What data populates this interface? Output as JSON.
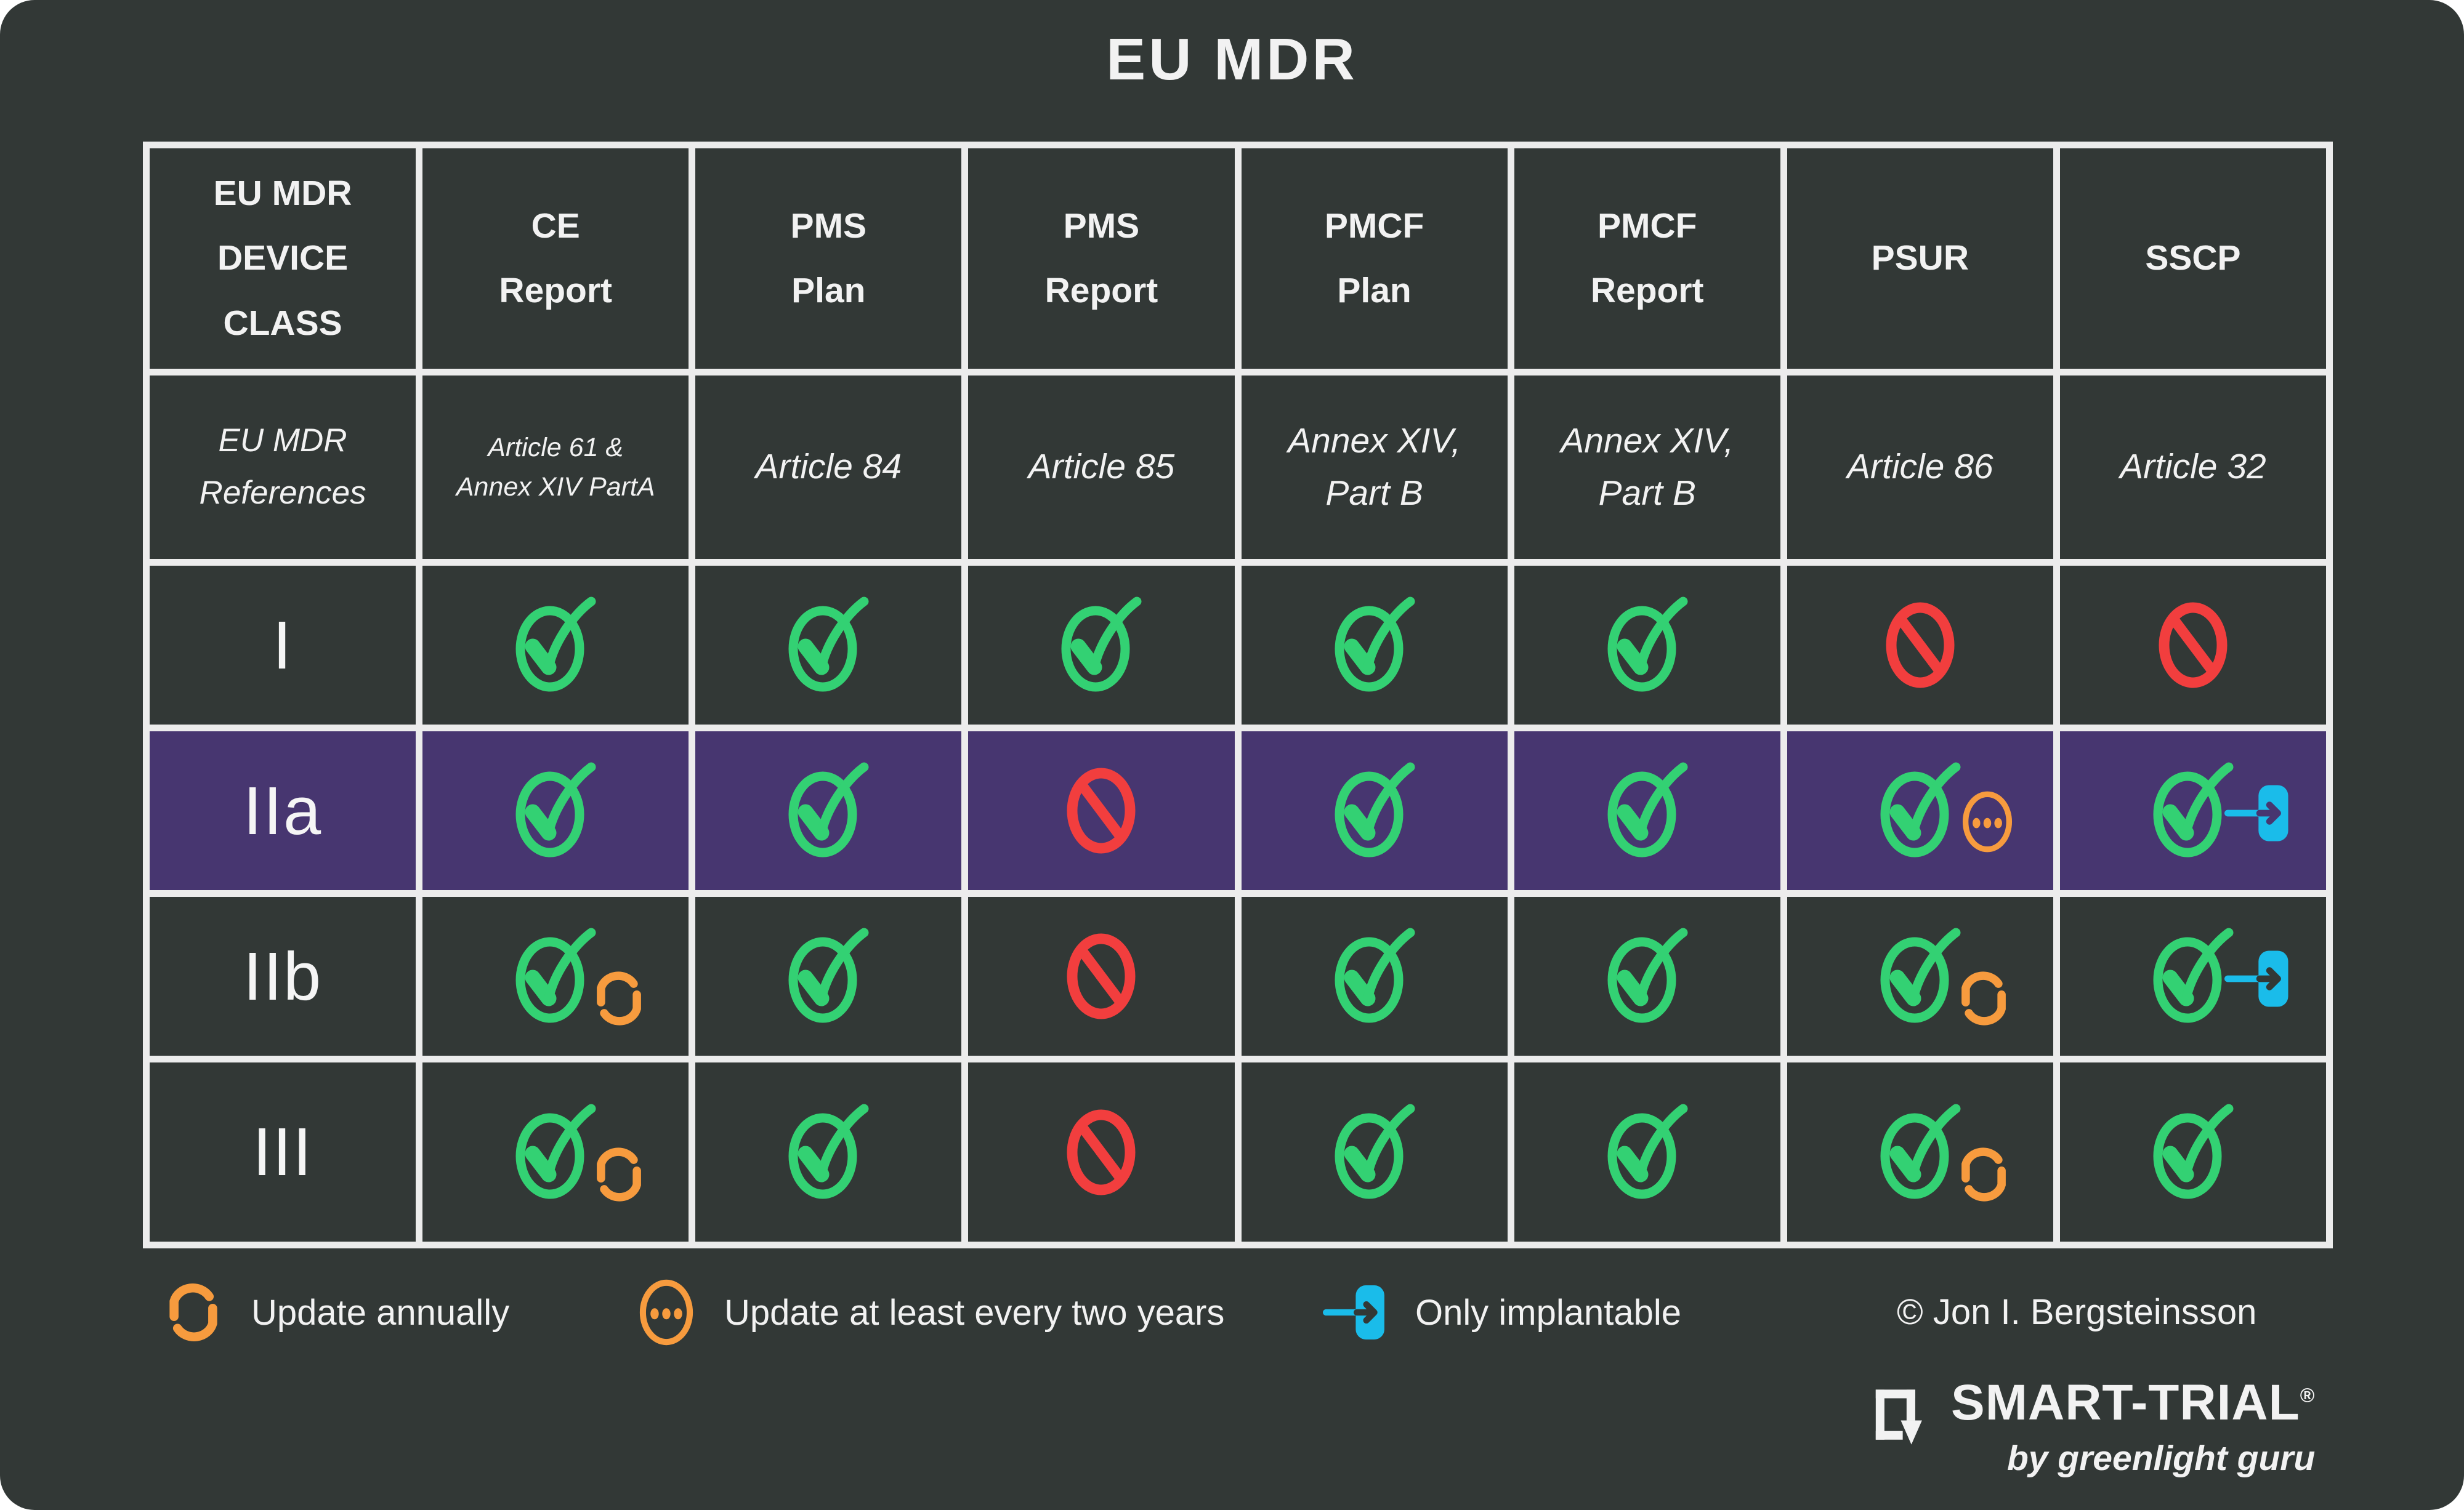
{
  "title": "EU MDR",
  "table": {
    "device_class_header": "EU MDR\nDEVICE\nCLASS",
    "columns": [
      "CE\nReport",
      "PMS\nPlan",
      "PMS\nReport",
      "PMCF\nPlan",
      "PMCF\nReport",
      "PSUR",
      "SSCP"
    ],
    "references_label": "EU MDR\nReferences",
    "references": [
      "Article 61 &\nAnnex XIV PartA",
      "Article 84",
      "Article 85",
      "Annex XIV,\nPart B",
      "Annex XIV,\nPart B",
      "Article 86",
      "Article 32"
    ],
    "rows": [
      {
        "device_class": "I",
        "highlighted": false,
        "cells": [
          {
            "status": "yes"
          },
          {
            "status": "yes"
          },
          {
            "status": "yes"
          },
          {
            "status": "yes"
          },
          {
            "status": "yes"
          },
          {
            "status": "no"
          },
          {
            "status": "no"
          }
        ]
      },
      {
        "device_class": "IIa",
        "highlighted": true,
        "cells": [
          {
            "status": "yes"
          },
          {
            "status": "yes"
          },
          {
            "status": "no"
          },
          {
            "status": "yes"
          },
          {
            "status": "yes"
          },
          {
            "status": "yes",
            "modifier": "every-two-years"
          },
          {
            "status": "yes",
            "modifier": "implantable"
          }
        ]
      },
      {
        "device_class": "IIb",
        "highlighted": false,
        "cells": [
          {
            "status": "yes",
            "modifier": "annual"
          },
          {
            "status": "yes"
          },
          {
            "status": "no"
          },
          {
            "status": "yes"
          },
          {
            "status": "yes"
          },
          {
            "status": "yes",
            "modifier": "annual"
          },
          {
            "status": "yes",
            "modifier": "implantable"
          }
        ]
      },
      {
        "device_class": "III",
        "highlighted": false,
        "cells": [
          {
            "status": "yes",
            "modifier": "annual"
          },
          {
            "status": "yes"
          },
          {
            "status": "no"
          },
          {
            "status": "yes"
          },
          {
            "status": "yes"
          },
          {
            "status": "yes",
            "modifier": "annual"
          },
          {
            "status": "yes"
          }
        ]
      }
    ]
  },
  "legend": {
    "items": [
      {
        "icon": "refresh-icon",
        "label": "Update annually"
      },
      {
        "icon": "ellipsis-circle-icon",
        "label": "Update at least every two years"
      },
      {
        "icon": "implantable-icon",
        "label": "Only implantable"
      }
    ],
    "copyright": "© Jon I. Bergsteinsson"
  },
  "logo": {
    "name": "SMART-TRIAL",
    "registered": "®",
    "tagline": "by greenlight guru"
  },
  "colors": {
    "background": "#323836",
    "highlight_row": "#473670",
    "grid": "#ECECEC",
    "check_green": "#33D173",
    "no_red": "#F23E3E",
    "update_orange": "#F79B3E",
    "implantable_blue": "#1ABCEA",
    "text": "#F2F2F2"
  }
}
